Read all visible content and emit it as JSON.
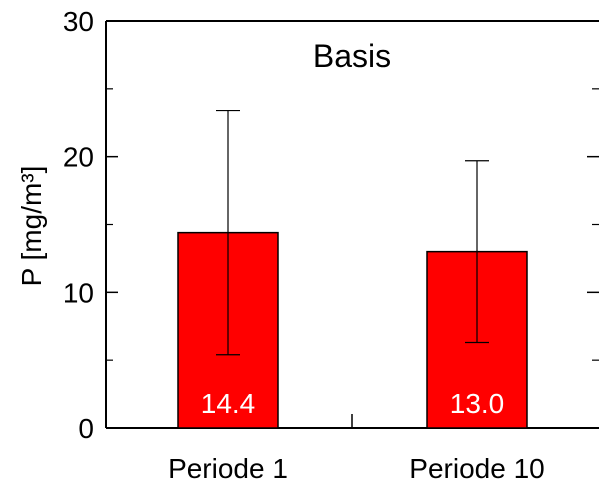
{
  "chart_data": {
    "type": "bar",
    "title": "Basis",
    "xlabel": "",
    "ylabel": "P [mg/m³]",
    "ylim": [
      0,
      30
    ],
    "yticks_major": [
      0,
      10,
      20,
      30
    ],
    "yticks_minor": [
      5,
      15,
      25
    ],
    "yticks_minor_labeled": false,
    "grid": false,
    "categories": [
      "Periode 1",
      "Periode 10"
    ],
    "values": [
      14.4,
      13.0
    ],
    "value_labels": [
      "14.4",
      "13.0"
    ],
    "error_low": [
      5.4,
      6.3
    ],
    "error_high": [
      23.4,
      19.7
    ],
    "bar_color": "#ff0000",
    "bar_label_color": "#ffffff"
  }
}
